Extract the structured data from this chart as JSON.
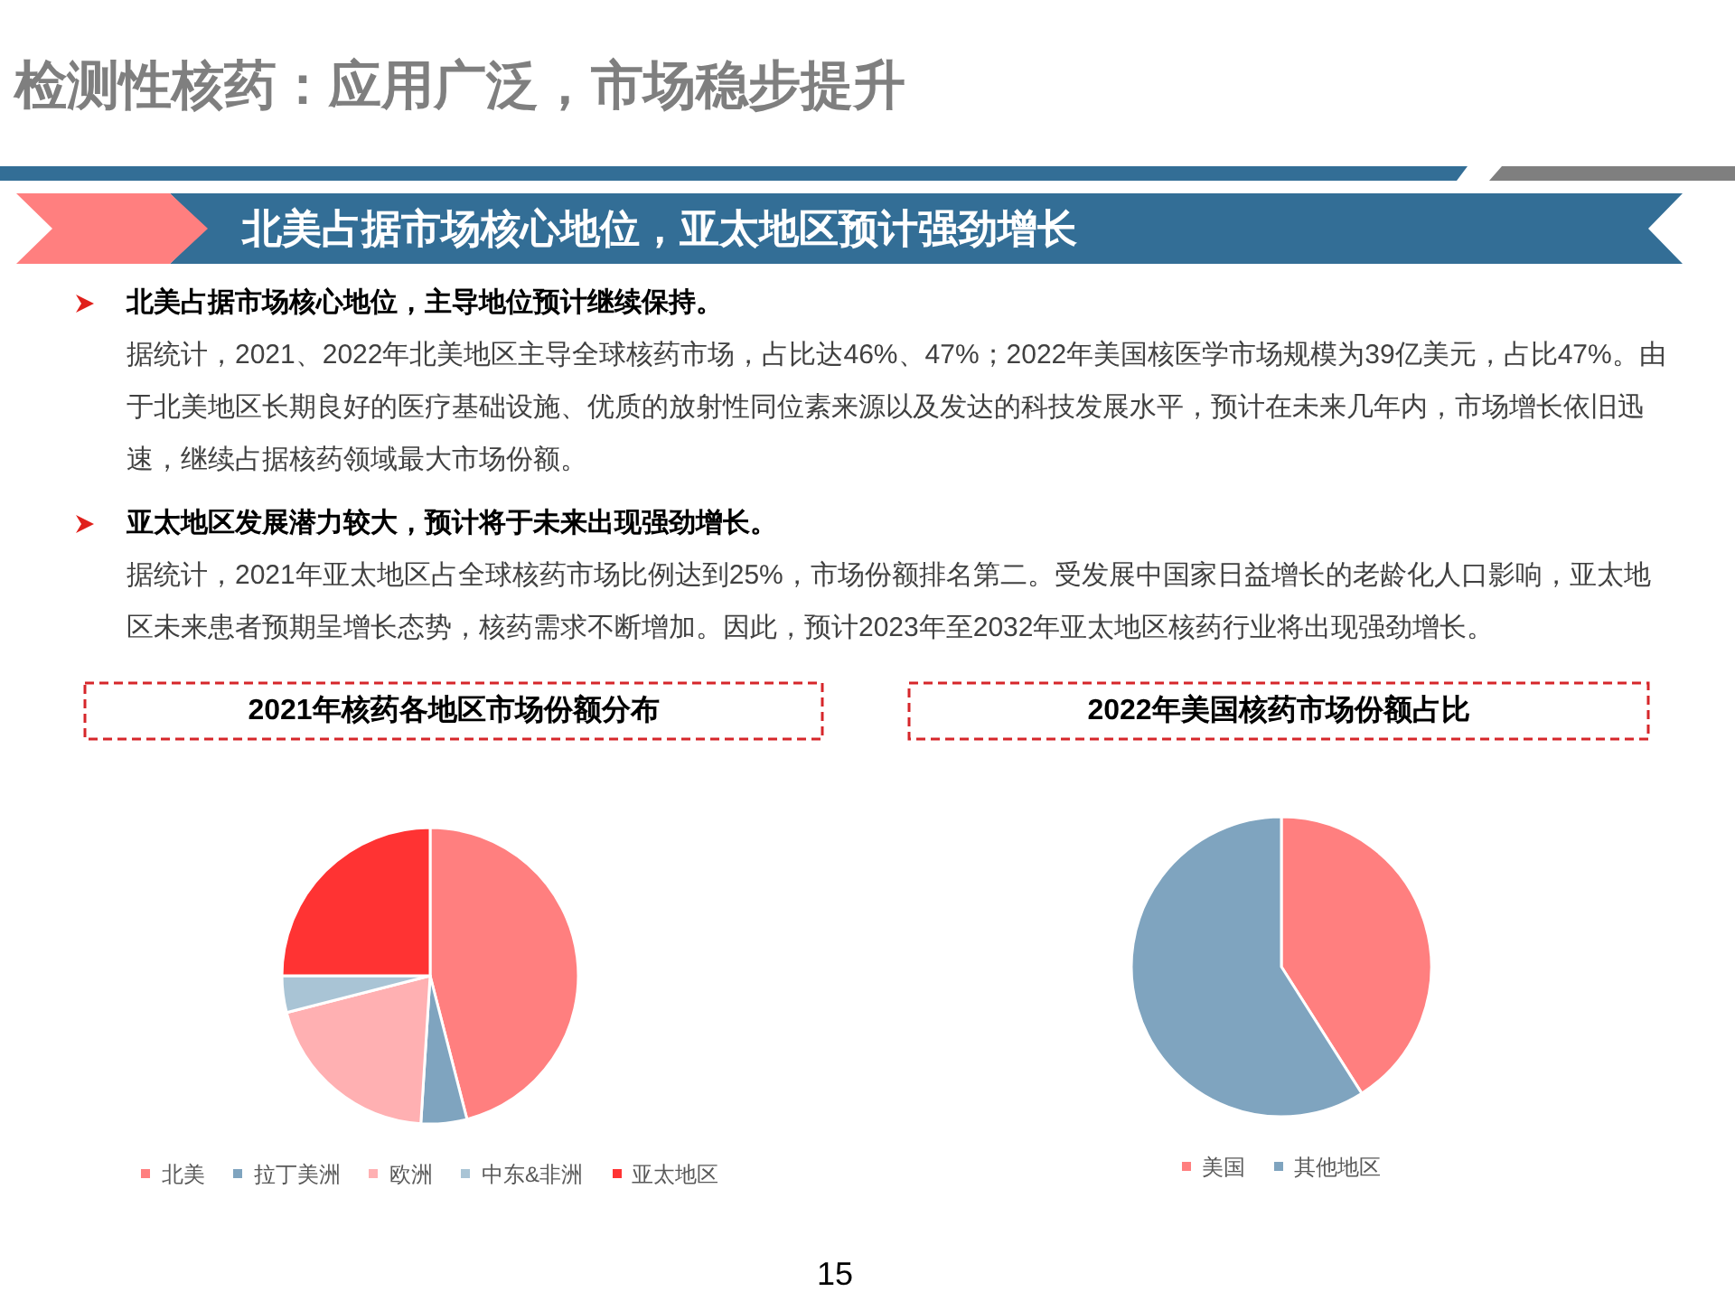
{
  "chart_data": [
    {
      "type": "other",
      "title": "检测性核药：应用广泛，市场稳步提升",
      "subtitle": "北美占据市场核心地位，亚太地区预计强劲增长",
      "annotations": [
        "北美占据市场核心地位，主导地位预计继续保持。",
        "据统计，2021、2022年北美地区主导全球核药市场，占比达46%、47%；2022年美国核医学市场规模为39亿美元，占比47%。由于北美地区长期良好的医疗基础设施、优质的放射性同位素来源以及发达的科技发展水平，预计在未来几年内，市场增长依旧迅速，继续占据核药领域最大市场份额。",
        "亚太地区发展潜力较大，预计将于未来出现强劲增长。",
        "据统计，2021年亚太地区占全球核药市场比例达到25%，市场份额排名第二。受发展中国家日益增长的老龄化人口影响，亚太地区未来患者预期呈增长态势，核药需求不断增加。因此，预计2023年至2032年亚太地区核药行业将出现强劲增长。",
        "15"
      ]
    },
    {
      "type": "pie",
      "title": "2021年核药各地区市场份额分布",
      "categories": [
        "北美",
        "拉丁美洲",
        "欧洲",
        "中东&非洲",
        "亚太地区"
      ],
      "values": [
        46,
        5,
        20,
        4,
        25
      ],
      "colors": [
        "#ff7f7f",
        "#7fa4bf",
        "#ffb0b2",
        "#a9c4d5",
        "#ff3333"
      ],
      "legend": "bottom"
    },
    {
      "type": "pie",
      "title": "2022年美国核药市场份额占比",
      "categories": [
        "美国",
        "其他地区"
      ],
      "values": [
        41,
        59
      ],
      "colors": [
        "#ff7f7f",
        "#7fa4bf"
      ],
      "legend": "bottom"
    }
  ]
}
